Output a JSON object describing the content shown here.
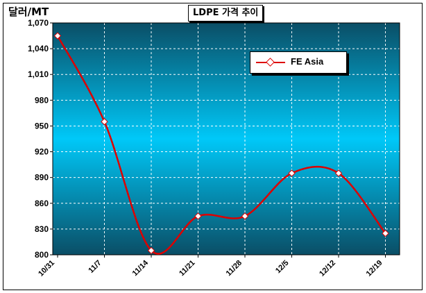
{
  "title": "LDPE 가격 추이",
  "unit_label": "달러/MT",
  "chart_data": {
    "type": "line",
    "title": "LDPE 가격 추이",
    "ylabel": "달러/MT",
    "xlabel": "",
    "categories": [
      "10/31",
      "11/7",
      "11/14",
      "11/21",
      "11/28",
      "12/5",
      "12/12",
      "12/19"
    ],
    "y_ticks": [
      "800",
      "830",
      "860",
      "890",
      "920",
      "950",
      "980",
      "1,010",
      "1,040",
      "1,070"
    ],
    "ylim": [
      800,
      1070
    ],
    "grid": true,
    "legend_position": "top-right",
    "series": [
      {
        "name": "FE Asia",
        "color": "#dd0000",
        "values": [
          1055,
          955,
          805,
          845,
          845,
          895,
          895,
          825
        ]
      }
    ]
  }
}
